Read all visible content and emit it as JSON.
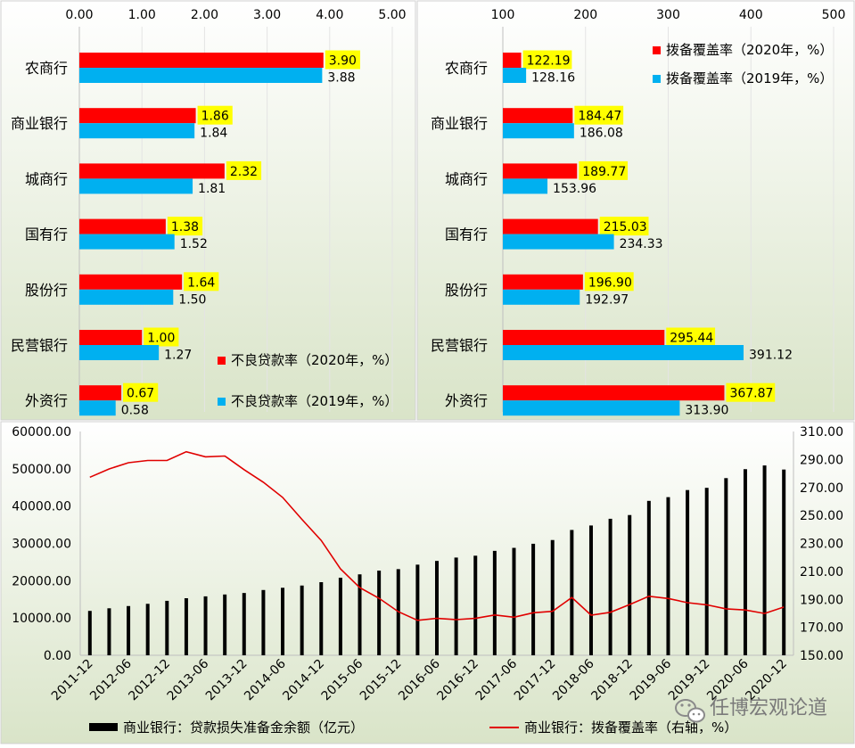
{
  "colors": {
    "red": "#ff0000",
    "blue": "#00b0f0",
    "label_highlight": "#ffff00",
    "bg_top": "#ffffff",
    "bg_bottom": "#d9e4c8",
    "bar_black": "#000000",
    "line_red": "#e00000"
  },
  "watermark": "任博宏观论道",
  "chart_data": [
    {
      "id": "npl",
      "type": "bar",
      "orientation": "horizontal",
      "categories": [
        "农商行",
        "商业银行",
        "城商行",
        "国有行",
        "股份行",
        "民营银行",
        "外资行"
      ],
      "xlim": [
        0,
        5
      ],
      "xticks": [
        "0.00",
        "1.00",
        "2.00",
        "3.00",
        "4.00",
        "5.00"
      ],
      "series": [
        {
          "name": "不良贷款率（2020年，%）",
          "values": [
            3.9,
            1.86,
            2.32,
            1.38,
            1.64,
            1.0,
            0.67
          ],
          "labels": [
            "3.90",
            "1.86",
            "2.32",
            "1.38",
            "1.64",
            "1.00",
            "0.67"
          ]
        },
        {
          "name": "不良贷款率（2019年，%）",
          "values": [
            3.88,
            1.84,
            1.81,
            1.52,
            1.5,
            1.27,
            0.58
          ],
          "labels": [
            "3.88",
            "1.84",
            "1.81",
            "1.52",
            "1.50",
            "1.27",
            "0.58"
          ]
        }
      ],
      "legend_position": "bottom-right"
    },
    {
      "id": "coverage",
      "type": "bar",
      "orientation": "horizontal",
      "categories": [
        "农商行",
        "商业银行",
        "城商行",
        "国有行",
        "股份行",
        "民营银行",
        "外资行"
      ],
      "xlim": [
        100,
        500
      ],
      "xticks": [
        "100",
        "200",
        "300",
        "400",
        "500"
      ],
      "series": [
        {
          "name": "拨备覆盖率（2020年，%）",
          "values": [
            122.19,
            184.47,
            189.77,
            215.03,
            196.9,
            295.44,
            367.87
          ],
          "labels": [
            "122.19",
            "184.47",
            "189.77",
            "215.03",
            "196.90",
            "295.44",
            "367.87"
          ]
        },
        {
          "name": "拨备覆盖率（2019年，%）",
          "values": [
            128.16,
            186.08,
            153.96,
            234.33,
            192.97,
            391.12,
            313.9
          ],
          "labels": [
            "128.16",
            "186.08",
            "153.96",
            "234.33",
            "192.97",
            "391.12",
            "313.90"
          ]
        }
      ],
      "legend_position": "top-right"
    },
    {
      "id": "timeseries",
      "type": "bar+line",
      "x": [
        "2011-12",
        "2012-03",
        "2012-06",
        "2012-09",
        "2012-12",
        "2013-03",
        "2013-06",
        "2013-09",
        "2013-12",
        "2014-03",
        "2014-06",
        "2014-09",
        "2014-12",
        "2015-03",
        "2015-06",
        "2015-09",
        "2015-12",
        "2016-03",
        "2016-06",
        "2016-09",
        "2016-12",
        "2017-03",
        "2017-06",
        "2017-09",
        "2017-12",
        "2018-03",
        "2018-06",
        "2018-09",
        "2018-12",
        "2019-03",
        "2019-06",
        "2019-09",
        "2019-12",
        "2020-03",
        "2020-06",
        "2020-09",
        "2020-12"
      ],
      "xtick_labels": [
        "2011-12",
        "2012-06",
        "2012-12",
        "2013-06",
        "2013-12",
        "2014-06",
        "2014-12",
        "2015-06",
        "2015-12",
        "2016-06",
        "2016-12",
        "2017-06",
        "2017-12",
        "2018-06",
        "2018-12",
        "2019-06",
        "2019-12",
        "2020-06",
        "2020-12"
      ],
      "ylim_left": [
        0,
        60000
      ],
      "yticks_left": [
        "60000.00",
        "50000.00",
        "40000.00",
        "30000.00",
        "20000.00",
        "10000.00",
        "0.00"
      ],
      "ylim_right": [
        150,
        310
      ],
      "yticks_right": [
        "310.00",
        "290.00",
        "270.00",
        "250.00",
        "230.00",
        "210.00",
        "190.00",
        "170.00",
        "150.00"
      ],
      "series": [
        {
          "name": "商业银行：贷款损失准备金余额（亿元）",
          "type": "bar",
          "axis": "left",
          "values": [
            11900,
            12600,
            13200,
            13800,
            14600,
            15300,
            15800,
            16300,
            16700,
            17500,
            18100,
            18700,
            19600,
            20800,
            21700,
            22700,
            23100,
            24300,
            25300,
            26200,
            26700,
            28000,
            28800,
            29900,
            30900,
            33600,
            34800,
            36600,
            37600,
            41400,
            42400,
            44300,
            44900,
            47500,
            49900,
            50900,
            49800
          ]
        },
        {
          "name": "商业银行：拨备覆盖率（右轴，%）",
          "type": "line",
          "axis": "right",
          "values": [
            277.3,
            283.2,
            287.7,
            289.3,
            289.3,
            295.5,
            291.9,
            292.5,
            282.7,
            273.7,
            262.9,
            247.2,
            232.1,
            211.8,
            198.4,
            190.8,
            181.2,
            175.0,
            176.4,
            175.5,
            176.4,
            178.8,
            177.2,
            180.4,
            181.4,
            191.3,
            178.7,
            180.7,
            186.3,
            192.2,
            190.6,
            187.6,
            186.1,
            183.2,
            182.4,
            179.9,
            184.5
          ]
        }
      ],
      "legend_position": "bottom"
    }
  ]
}
